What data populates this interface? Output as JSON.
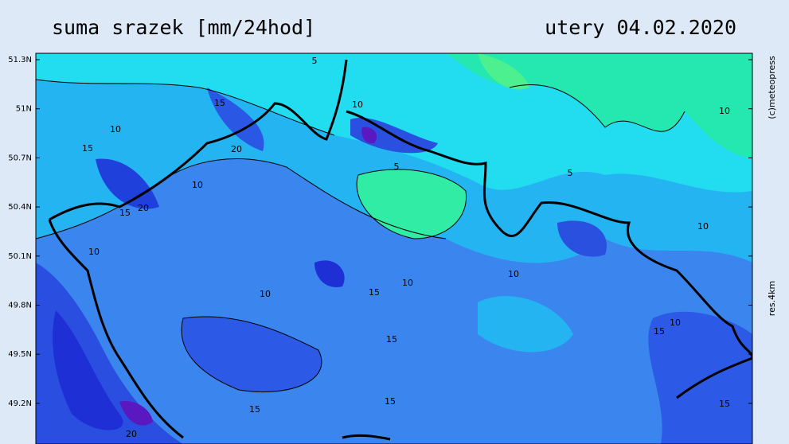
{
  "header": {
    "title": "suma srazek [mm/24hod]",
    "date": "utery 04.02.2020"
  },
  "side": {
    "copyright": "(c)meteopress",
    "resolution": "res.4km"
  },
  "map": {
    "lat_labels": [
      "51.3N",
      "51N",
      "50.7N",
      "50.4N",
      "50.1N",
      "49.8N",
      "49.5N",
      "49.2N"
    ],
    "contour_labels": [
      "5",
      "10",
      "15",
      "20",
      "10",
      "15",
      "20",
      "10",
      "10",
      "15",
      "15",
      "10",
      "10",
      "5",
      "5",
      "10",
      "15",
      "15",
      "20",
      "10",
      "15",
      "15",
      "10",
      "10",
      "15"
    ]
  }
}
